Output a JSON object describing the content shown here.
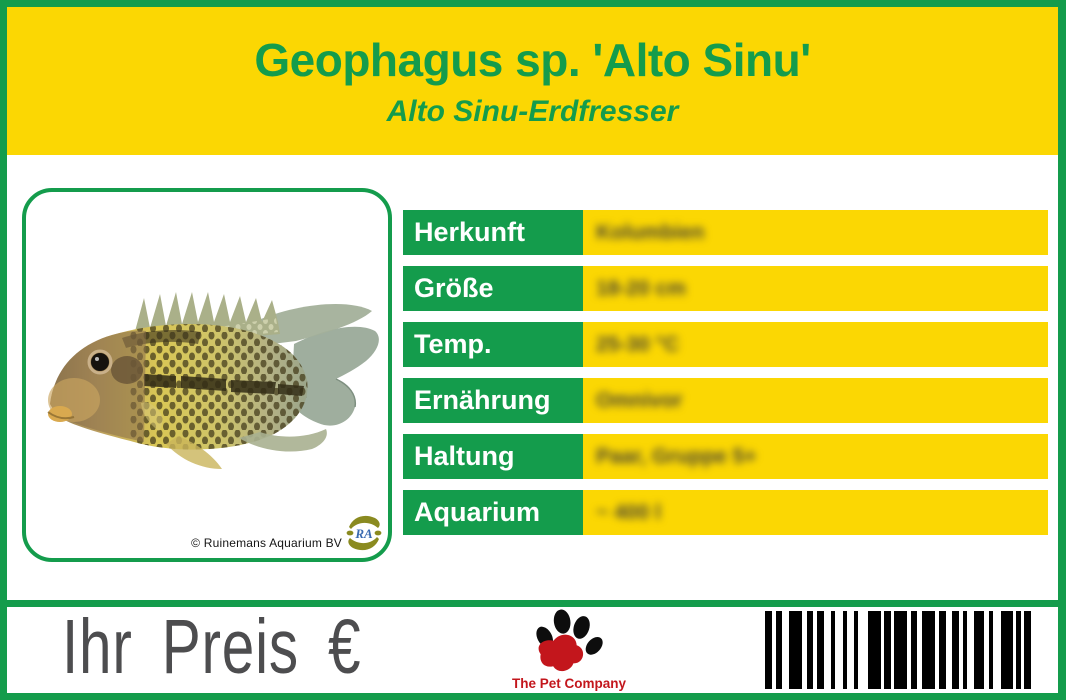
{
  "header": {
    "title": "Geophagus sp. 'Alto Sinu'",
    "subtitle": "Alto Sinu-Erdfresser"
  },
  "photo": {
    "credit": "© Ruinemans Aquarium BV",
    "logo_monogram": "RA"
  },
  "table": {
    "rows": [
      {
        "label": "Herkunft",
        "value": "Kolumbien"
      },
      {
        "label": "Größe",
        "value": "18-20 cm"
      },
      {
        "label": "Temp.",
        "value": "25-30 °C"
      },
      {
        "label": "Ernährung",
        "value": "Omnivor"
      },
      {
        "label": "Haltung",
        "value": "Paar, Gruppe 5+"
      },
      {
        "label": "Aquarium",
        "value": "~ 400 l"
      }
    ],
    "values_blurred": true
  },
  "footer": {
    "price_label": "Ihr Preis €",
    "brand": "The Pet Company",
    "barcode_pattern": [
      [
        8,
        5
      ],
      [
        8,
        8
      ],
      [
        15,
        6
      ],
      [
        8,
        5
      ],
      [
        8,
        8
      ],
      [
        5,
        10
      ],
      [
        5,
        8
      ],
      [
        5,
        12
      ],
      [
        15,
        4
      ],
      [
        8,
        4
      ],
      [
        15,
        5
      ],
      [
        8,
        6
      ],
      [
        15,
        5
      ],
      [
        8,
        8
      ],
      [
        8,
        5
      ],
      [
        5,
        8
      ],
      [
        12,
        6
      ],
      [
        5,
        10
      ],
      [
        14,
        4
      ],
      [
        5,
        4
      ],
      [
        8,
        0
      ]
    ]
  },
  "colors": {
    "green": "#149c4c",
    "yellow": "#fbd703",
    "price_gray": "#4d4d4f",
    "brand_red": "#c3161c",
    "logo_olive": "#8a8a20"
  }
}
